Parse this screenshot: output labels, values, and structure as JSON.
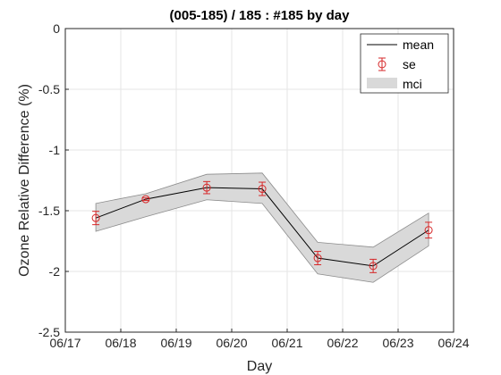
{
  "chart_data": {
    "type": "line",
    "title": "(005-185) / 185 : #185 by day",
    "xlabel": "Day",
    "ylabel": "Ozone Relative Difference (%)",
    "x_ticks": [
      "06/17",
      "06/18",
      "06/19",
      "06/20",
      "06/21",
      "06/22",
      "06/23",
      "06/24"
    ],
    "y_ticks": [
      "0",
      "-0.5",
      "-1",
      "-1.5",
      "-2",
      "-2.5"
    ],
    "y_tick_values": [
      0,
      -0.5,
      -1,
      -1.5,
      -2,
      -2.5
    ],
    "xlim_days": [
      0,
      7
    ],
    "ylim": [
      -2.5,
      0
    ],
    "grid": true,
    "legend_placement": "top-right",
    "legend": [
      {
        "key": "mean",
        "label": "mean"
      },
      {
        "key": "se",
        "label": "se"
      },
      {
        "key": "mci",
        "label": "mci"
      }
    ],
    "series": [
      {
        "name": "mean",
        "x_days": [
          0.55,
          1.45,
          2.55,
          3.55,
          4.55,
          5.55,
          6.55
        ],
        "values": [
          -1.56,
          -1.405,
          -1.31,
          -1.32,
          -1.89,
          -1.955,
          -1.66
        ],
        "se": [
          0.055,
          0.01,
          0.05,
          0.055,
          0.055,
          0.055,
          0.065
        ],
        "mci_upper": [
          -1.44,
          -1.36,
          -1.2,
          -1.19,
          -1.76,
          -1.8,
          -1.52
        ],
        "mci_lower": [
          -1.67,
          -1.55,
          -1.41,
          -1.44,
          -2.02,
          -2.09,
          -1.79
        ]
      }
    ],
    "colors": {
      "mean_line": "#000000",
      "se_marker": "#d62728",
      "mci_fill": "#d9d9d9",
      "mci_edge": "#8c8c8c",
      "grid": "#e6e6e6",
      "axes": "#262626"
    }
  }
}
